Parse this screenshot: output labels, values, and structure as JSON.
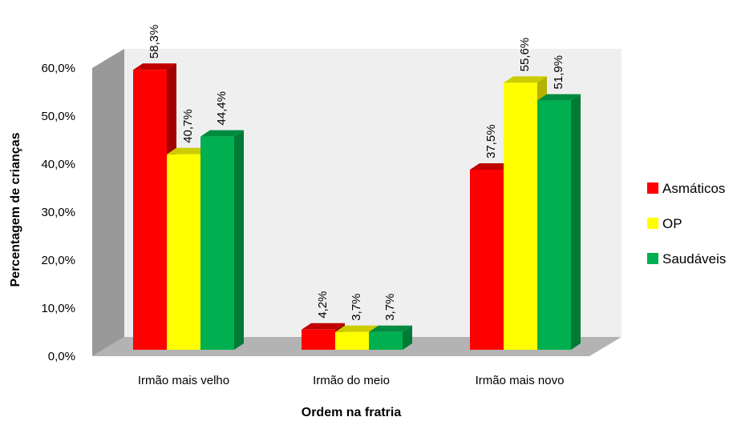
{
  "chart_data": {
    "type": "bar",
    "three_d": true,
    "categories": [
      "Irmão mais velho",
      "Irmão do meio",
      "Irmão mais novo"
    ],
    "series": [
      {
        "name": "Asmáticos",
        "values": [
          58.3,
          4.2,
          37.5
        ],
        "labels": [
          "58,3%",
          "4,2%",
          "37,5%"
        ],
        "color": "#ff0000",
        "top": "#c00000",
        "side": "#a00000"
      },
      {
        "name": "OP",
        "values": [
          40.7,
          3.7,
          55.6
        ],
        "labels": [
          "40,7%",
          "3,7%",
          "55,6%"
        ],
        "color": "#ffff00",
        "top": "#cccc00",
        "side": "#b3b300"
      },
      {
        "name": "Saudáveis",
        "values": [
          44.4,
          3.7,
          51.9
        ],
        "labels": [
          "44,4%",
          "3,7%",
          "51,9%"
        ],
        "color": "#00b050",
        "top": "#008c3e",
        "side": "#007a35"
      }
    ],
    "yticks": [
      "0,0%",
      "10,0%",
      "20,0%",
      "30,0%",
      "40,0%",
      "50,0%",
      "60,0%"
    ],
    "ylim": [
      0,
      60
    ],
    "xlabel": "Ordem na fratria",
    "ylabel": "Percentagem de crianças",
    "legend_position": "right",
    "wall_color": "#efefef",
    "floor_color": "#b3b3b3",
    "side_wall_color": "#999999"
  }
}
